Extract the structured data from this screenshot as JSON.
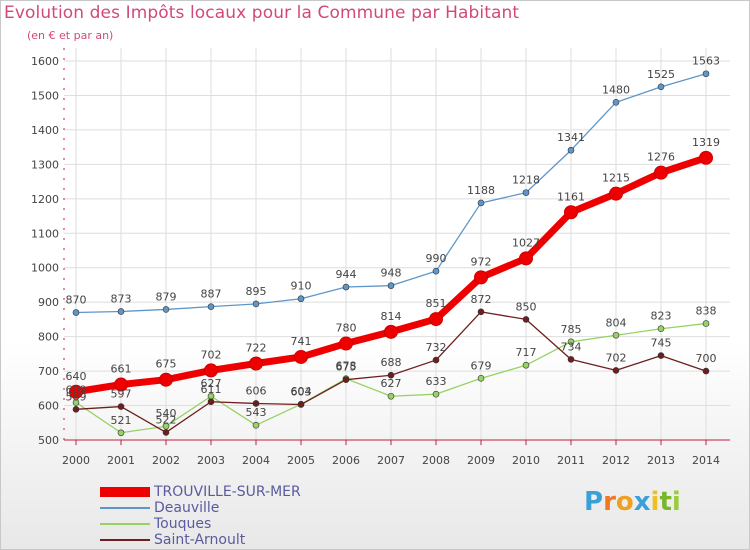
{
  "header": {
    "title": "Evolution des Impôts locaux pour la Commune par Habitant",
    "subtitle": "(en € et par an)"
  },
  "colors": {
    "title": "#d2487c",
    "axis": "#c0203c",
    "TROUVILLE-SUR-MER": "#ee0000",
    "Deauville": "#5f96c8",
    "Touques": "#96d264",
    "Saint-Arnoult": "#6e1e1e",
    "legend_text": "#5a5aa0"
  },
  "logo": {
    "letters": [
      "P",
      "r",
      "o",
      "x",
      "i",
      "t",
      "i"
    ],
    "colors": [
      "#3aa0d8",
      "#f07820",
      "#f0a020",
      "#3aa0d8",
      "#f0c020",
      "#78b828",
      "#9ccc3c"
    ]
  },
  "chart_data": {
    "type": "line",
    "title": "Evolution des Impôts locaux pour la Commune par Habitant",
    "subtitle": "(en € et par an)",
    "xlabel": "",
    "ylabel": "",
    "x": [
      "2000",
      "2001",
      "2002",
      "2003",
      "2004",
      "2005",
      "2006",
      "2007",
      "2008",
      "2009",
      "2010",
      "2011",
      "2012",
      "2013",
      "2014"
    ],
    "ylim": [
      500,
      1600
    ],
    "yticks": [
      "500",
      "600",
      "700",
      "800",
      "900",
      "1000",
      "1100",
      "1200",
      "1300",
      "1400",
      "1500",
      "1600"
    ],
    "grid": true,
    "legend_position": "bottom-left",
    "series": [
      {
        "name": "TROUVILLE-SUR-MER",
        "values": [
          640,
          661,
          675,
          702,
          722,
          741,
          780,
          814,
          851,
          972,
          1027,
          1161,
          1215,
          1276,
          1319
        ]
      },
      {
        "name": "Deauville",
        "values": [
          870,
          873,
          879,
          887,
          895,
          910,
          944,
          948,
          990,
          1188,
          1218,
          1341,
          1480,
          1525,
          1563
        ]
      },
      {
        "name": "Touques",
        "values": [
          609,
          521,
          540,
          627,
          543,
          604,
          678,
          627,
          633,
          679,
          717,
          785,
          804,
          823,
          838
        ]
      },
      {
        "name": "Saint-Arnoult",
        "values": [
          589,
          597,
          522,
          611,
          606,
          603,
          675,
          688,
          732,
          872,
          850,
          734,
          702,
          745,
          700
        ]
      }
    ]
  }
}
